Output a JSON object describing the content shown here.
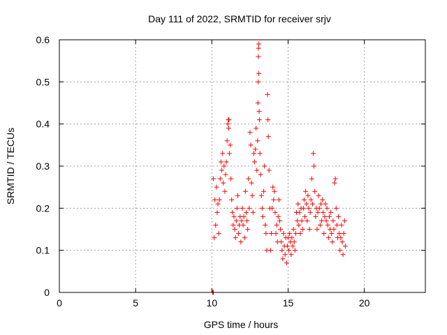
{
  "chart_data": {
    "type": "scatter",
    "title": "Day 111 of 2022, SRMTID for receiver srjv",
    "xlabel": "GPS time / hours",
    "ylabel": "SRMTID / TECUs",
    "xlim": [
      0,
      24
    ],
    "ylim": [
      0,
      0.6
    ],
    "xticks": [
      0,
      5,
      10,
      15,
      20
    ],
    "xtick_labels": [
      "0",
      "5",
      "10",
      "15",
      "20"
    ],
    "yticks": [
      0,
      0.1,
      0.2,
      0.3,
      0.4,
      0.5,
      0.6
    ],
    "ytick_labels": [
      "0",
      "0.1",
      "0.2",
      "0.3",
      "0.4",
      "0.5",
      "0.6"
    ],
    "grid": true,
    "marker": "+",
    "series": [
      {
        "name": "srjv",
        "color": "#ff0000",
        "points": [
          [
            10.05,
            0.0
          ],
          [
            10.08,
            0.0
          ],
          [
            10.1,
            0.0
          ],
          [
            10.1,
            0.27
          ],
          [
            10.15,
            0.13
          ],
          [
            10.2,
            0.22
          ],
          [
            10.25,
            0.16
          ],
          [
            10.3,
            0.25
          ],
          [
            10.35,
            0.19
          ],
          [
            10.4,
            0.21
          ],
          [
            10.45,
            0.14
          ],
          [
            10.5,
            0.22
          ],
          [
            10.55,
            0.27
          ],
          [
            10.6,
            0.31
          ],
          [
            10.65,
            0.29
          ],
          [
            10.7,
            0.33
          ],
          [
            10.75,
            0.26
          ],
          [
            10.8,
            0.3
          ],
          [
            10.85,
            0.24
          ],
          [
            10.9,
            0.28
          ],
          [
            10.95,
            0.31
          ],
          [
            11.0,
            0.36
          ],
          [
            11.05,
            0.4
          ],
          [
            11.08,
            0.41
          ],
          [
            11.1,
            0.39
          ],
          [
            11.12,
            0.41
          ],
          [
            11.15,
            0.33
          ],
          [
            11.2,
            0.35
          ],
          [
            11.25,
            0.27
          ],
          [
            11.3,
            0.22
          ],
          [
            11.35,
            0.19
          ],
          [
            11.4,
            0.16
          ],
          [
            11.45,
            0.18
          ],
          [
            11.5,
            0.15
          ],
          [
            11.55,
            0.13
          ],
          [
            11.6,
            0.17
          ],
          [
            11.65,
            0.2
          ],
          [
            11.7,
            0.23
          ],
          [
            11.75,
            0.14
          ],
          [
            11.8,
            0.16
          ],
          [
            11.85,
            0.18
          ],
          [
            11.9,
            0.12
          ],
          [
            11.95,
            0.17
          ],
          [
            12.0,
            0.2
          ],
          [
            12.05,
            0.16
          ],
          [
            12.1,
            0.18
          ],
          [
            12.15,
            0.13
          ],
          [
            12.2,
            0.24
          ],
          [
            12.25,
            0.19
          ],
          [
            12.3,
            0.17
          ],
          [
            12.35,
            0.15
          ],
          [
            12.4,
            0.27
          ],
          [
            12.45,
            0.2
          ],
          [
            12.5,
            0.38
          ],
          [
            12.55,
            0.35
          ],
          [
            12.6,
            0.26
          ],
          [
            12.65,
            0.23
          ],
          [
            12.7,
            0.19
          ],
          [
            12.75,
            0.33
          ],
          [
            12.8,
            0.31
          ],
          [
            12.85,
            0.34
          ],
          [
            12.9,
            0.39
          ],
          [
            12.95,
            0.29
          ],
          [
            13.0,
            0.36
          ],
          [
            13.02,
            0.45
          ],
          [
            13.04,
            0.5
          ],
          [
            13.05,
            0.56
          ],
          [
            13.06,
            0.58
          ],
          [
            13.07,
            0.59
          ],
          [
            13.08,
            0.52
          ],
          [
            13.1,
            0.43
          ],
          [
            13.12,
            0.41
          ],
          [
            13.15,
            0.33
          ],
          [
            13.2,
            0.28
          ],
          [
            13.25,
            0.23
          ],
          [
            13.3,
            0.2
          ],
          [
            13.35,
            0.18
          ],
          [
            13.4,
            0.24
          ],
          [
            13.45,
            0.3
          ],
          [
            13.5,
            0.16
          ],
          [
            13.55,
            0.14
          ],
          [
            13.6,
            0.1
          ],
          [
            13.65,
            0.47
          ],
          [
            13.68,
            0.41
          ],
          [
            13.7,
            0.37
          ],
          [
            13.75,
            0.29
          ],
          [
            13.8,
            0.2
          ],
          [
            13.85,
            0.1
          ],
          [
            13.9,
            0.14
          ],
          [
            13.95,
            0.2
          ],
          [
            14.0,
            0.25
          ],
          [
            14.05,
            0.22
          ],
          [
            14.1,
            0.24
          ],
          [
            14.15,
            0.19
          ],
          [
            14.2,
            0.14
          ],
          [
            14.25,
            0.16
          ],
          [
            14.3,
            0.12
          ],
          [
            14.35,
            0.18
          ],
          [
            14.4,
            0.22
          ],
          [
            14.45,
            0.17
          ],
          [
            14.5,
            0.15
          ],
          [
            14.55,
            0.12
          ],
          [
            14.6,
            0.1
          ],
          [
            14.65,
            0.08
          ],
          [
            14.7,
            0.14
          ],
          [
            14.75,
            0.11
          ],
          [
            14.8,
            0.09
          ],
          [
            14.85,
            0.13
          ],
          [
            14.9,
            0.07
          ],
          [
            14.95,
            0.11
          ],
          [
            15.0,
            0.13
          ],
          [
            15.05,
            0.1
          ],
          [
            15.1,
            0.14
          ],
          [
            15.15,
            0.12
          ],
          [
            15.2,
            0.09
          ],
          [
            15.25,
            0.13
          ],
          [
            15.3,
            0.11
          ],
          [
            15.35,
            0.15
          ],
          [
            15.4,
            0.12
          ],
          [
            15.45,
            0.1
          ],
          [
            15.5,
            0.14
          ],
          [
            15.55,
            0.19
          ],
          [
            15.6,
            0.17
          ],
          [
            15.65,
            0.21
          ],
          [
            15.7,
            0.16
          ],
          [
            15.75,
            0.19
          ],
          [
            15.8,
            0.14
          ],
          [
            15.85,
            0.2
          ],
          [
            15.9,
            0.17
          ],
          [
            15.95,
            0.15
          ],
          [
            16.0,
            0.2
          ],
          [
            16.05,
            0.22
          ],
          [
            16.1,
            0.18
          ],
          [
            16.15,
            0.24
          ],
          [
            16.2,
            0.21
          ],
          [
            16.25,
            0.17
          ],
          [
            16.3,
            0.23
          ],
          [
            16.35,
            0.2
          ],
          [
            16.4,
            0.15
          ],
          [
            16.45,
            0.19
          ],
          [
            16.5,
            0.22
          ],
          [
            16.55,
            0.27
          ],
          [
            16.6,
            0.21
          ],
          [
            16.65,
            0.33
          ],
          [
            16.7,
            0.3
          ],
          [
            16.75,
            0.24
          ],
          [
            16.8,
            0.18
          ],
          [
            16.85,
            0.2
          ],
          [
            16.9,
            0.15
          ],
          [
            16.95,
            0.19
          ],
          [
            17.0,
            0.23
          ],
          [
            17.05,
            0.2
          ],
          [
            17.1,
            0.16
          ],
          [
            17.15,
            0.21
          ],
          [
            17.2,
            0.17
          ],
          [
            17.25,
            0.22
          ],
          [
            17.3,
            0.19
          ],
          [
            17.35,
            0.14
          ],
          [
            17.4,
            0.18
          ],
          [
            17.45,
            0.21
          ],
          [
            17.5,
            0.17
          ],
          [
            17.55,
            0.2
          ],
          [
            17.6,
            0.16
          ],
          [
            17.65,
            0.13
          ],
          [
            17.7,
            0.18
          ],
          [
            17.75,
            0.15
          ],
          [
            17.8,
            0.19
          ],
          [
            17.85,
            0.14
          ],
          [
            17.9,
            0.12
          ],
          [
            17.95,
            0.17
          ],
          [
            18.0,
            0.15
          ],
          [
            18.05,
            0.26
          ],
          [
            18.1,
            0.27
          ],
          [
            18.15,
            0.2
          ],
          [
            18.2,
            0.16
          ],
          [
            18.25,
            0.13
          ],
          [
            18.3,
            0.18
          ],
          [
            18.35,
            0.14
          ],
          [
            18.4,
            0.1
          ],
          [
            18.45,
            0.13
          ],
          [
            18.5,
            0.16
          ],
          [
            18.55,
            0.12
          ],
          [
            18.6,
            0.09
          ],
          [
            18.65,
            0.14
          ],
          [
            18.7,
            0.17
          ],
          [
            18.75,
            0.11
          ]
        ]
      }
    ]
  }
}
